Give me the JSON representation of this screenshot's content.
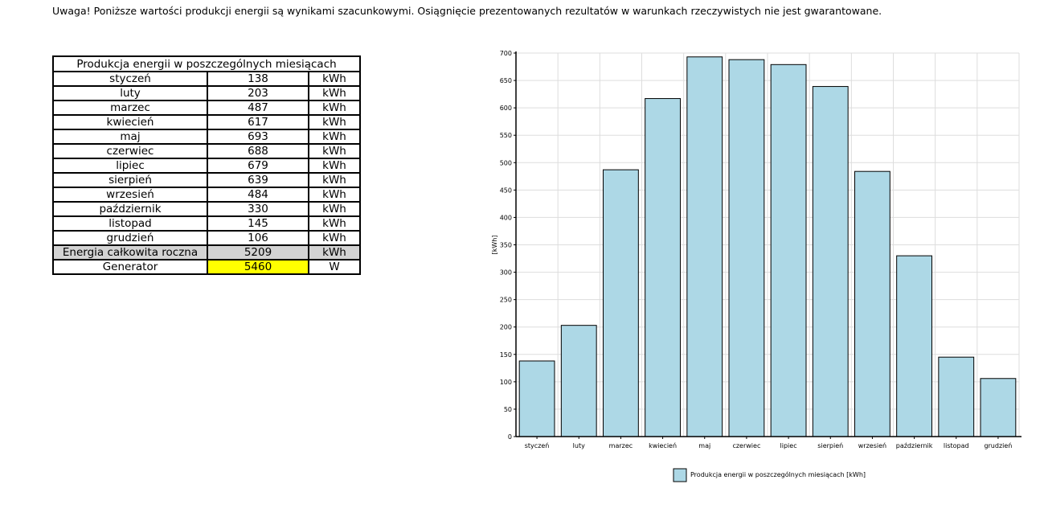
{
  "warning": "Uwaga! Poniższe wartości produkcji energii są wynikami szacunkowymi. Osiągnięcie prezentowanych rezultatów w warunkach rzeczywistych nie jest gwarantowane.",
  "table": {
    "title": "Produkcja energii w poszczególnych miesiącach",
    "rows": [
      {
        "month": "styczeń",
        "value": "138",
        "unit": "kWh"
      },
      {
        "month": "luty",
        "value": "203",
        "unit": "kWh"
      },
      {
        "month": "marzec",
        "value": "487",
        "unit": "kWh"
      },
      {
        "month": "kwiecień",
        "value": "617",
        "unit": "kWh"
      },
      {
        "month": "maj",
        "value": "693",
        "unit": "kWh"
      },
      {
        "month": "czerwiec",
        "value": "688",
        "unit": "kWh"
      },
      {
        "month": "lipiec",
        "value": "679",
        "unit": "kWh"
      },
      {
        "month": "sierpień",
        "value": "639",
        "unit": "kWh"
      },
      {
        "month": "wrzesień",
        "value": "484",
        "unit": "kWh"
      },
      {
        "month": "październik",
        "value": "330",
        "unit": "kWh"
      },
      {
        "month": "listopad",
        "value": "145",
        "unit": "kWh"
      },
      {
        "month": "grudzień",
        "value": "106",
        "unit": "kWh"
      }
    ],
    "total": {
      "label": "Energia całkowita roczna",
      "value": "5209",
      "unit": "kWh"
    },
    "generator": {
      "label": "Generator",
      "value": "5460",
      "unit": "W"
    }
  },
  "colors": {
    "bar": "#add8e6",
    "total_row": "#d3d3d3",
    "generator_highlight": "#ffff00",
    "grid": "#dddddd"
  },
  "chart_data": {
    "type": "bar",
    "categories": [
      "styczeń",
      "luty",
      "marzec",
      "kwiecień",
      "maj",
      "czerwiec",
      "lipiec",
      "sierpień",
      "wrzesień",
      "październik",
      "listopad",
      "grudzień"
    ],
    "series": [
      {
        "name": "Produkcja energii w poszczególnych miesiącach [kWh]",
        "values": [
          138,
          203,
          487,
          617,
          693,
          688,
          679,
          639,
          484,
          330,
          145,
          106
        ]
      }
    ],
    "ylabel": "[kWh]",
    "xlabel": "",
    "ylim": [
      0,
      700
    ],
    "yticks": [
      0,
      50,
      100,
      150,
      200,
      250,
      300,
      350,
      400,
      450,
      500,
      550,
      600,
      650,
      700
    ],
    "grid": true,
    "legend": "bottom-center"
  }
}
